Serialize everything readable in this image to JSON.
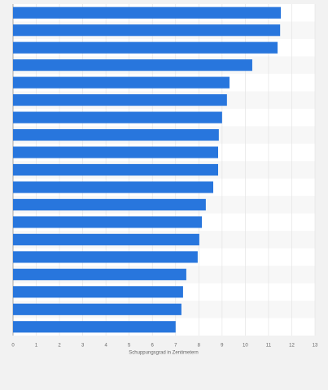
{
  "chart_data": {
    "type": "hbar",
    "x_label": "Schuppungsgrad in Zentimetern",
    "categories": [
      null,
      null,
      null,
      null,
      null,
      null,
      null,
      null,
      null,
      null,
      null,
      null,
      null,
      null,
      null,
      null,
      null,
      null,
      null
    ],
    "values": [
      11.53,
      11.5,
      11.39,
      10.3,
      9.32,
      9.21,
      9.0,
      8.86,
      8.83,
      8.83,
      8.62,
      8.3,
      8.13,
      8.02,
      7.95,
      7.46,
      7.32,
      7.25,
      7.0
    ],
    "color": "#2876dd",
    "xlim": [
      0,
      13
    ],
    "xticks": [
      0,
      1,
      2,
      3,
      4,
      5,
      6,
      7,
      8,
      9,
      10,
      11,
      12,
      13
    ],
    "grid": true
  }
}
